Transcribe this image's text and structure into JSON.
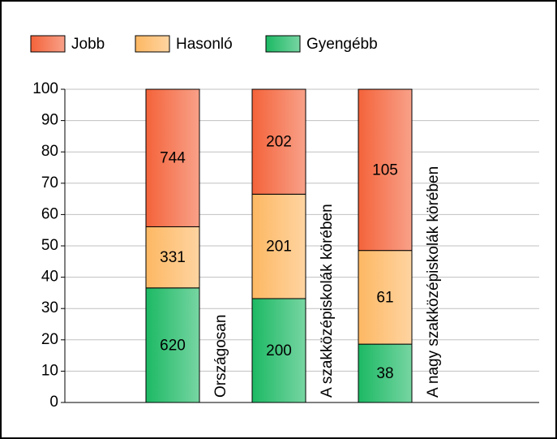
{
  "chart_data": {
    "type": "bar",
    "stacking": "percent",
    "categories": [
      "Országosan",
      "A szakközépiskolák körében",
      "A nagy szakközépiskolák körében"
    ],
    "series": [
      {
        "name": "Jobb",
        "color": "#f4633a",
        "values": [
          744,
          202,
          105
        ]
      },
      {
        "name": "Hasonló",
        "color": "#fdb863",
        "values": [
          331,
          201,
          61
        ]
      },
      {
        "name": "Gyengébb",
        "color": "#1cb964",
        "values": [
          620,
          200,
          38
        ]
      }
    ],
    "ylim": [
      0,
      100
    ],
    "yticks": [
      0,
      10,
      20,
      30,
      40,
      50,
      60,
      70,
      80,
      90,
      100
    ],
    "grid": true,
    "legend": "top"
  }
}
